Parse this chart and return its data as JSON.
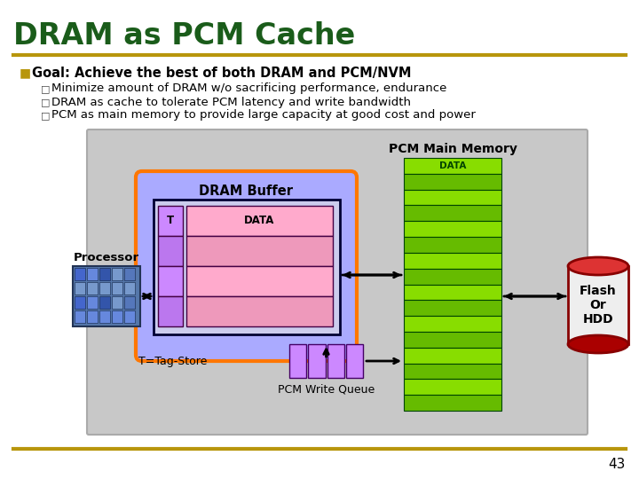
{
  "title": "DRAM as PCM Cache",
  "title_color": "#1a5c1a",
  "divider_color": "#b8960c",
  "bullet_color": "#b8960c",
  "goal_text": "Goal: Achieve the best of both DRAM and PCM/NVM",
  "sub_bullets": [
    "Minimize amount of DRAM w/o sacrificing performance, endurance",
    "DRAM as cache to tolerate PCM latency and write bandwidth",
    "PCM as main memory to provide large capacity at good cost and power"
  ],
  "diagram_bg": "#c8c8c8",
  "dram_buffer_bg": "#aaaaff",
  "dram_buffer_border": "#ff7700",
  "dram_buffer_label": "DRAM Buffer",
  "pcm_main_label": "PCM Main Memory",
  "pcm_color_light": "#88dd00",
  "pcm_color_dark": "#66bb00",
  "pcm_border": "#004400",
  "data_label_color": "#004400",
  "pcm_queue_color": "#cc88ff",
  "pcm_queue_label": "PCM Write Queue",
  "tag_label": "T=Tag-Store",
  "processor_label": "Processor",
  "flash_label": "Flash\nOr\nHDD",
  "flash_body_color": "#eeeeee",
  "flash_top_color": "#dd3333",
  "flash_bottom_color": "#aa0000",
  "flash_border_color": "#880000",
  "inner_box_bg": "#ccccee",
  "inner_box_border": "#000033",
  "tag_cell_color": "#cc88ff",
  "data_cell_color": "#ffaacc",
  "arrow_color": "#000000",
  "page_num": "43",
  "background_color": "#ffffff"
}
